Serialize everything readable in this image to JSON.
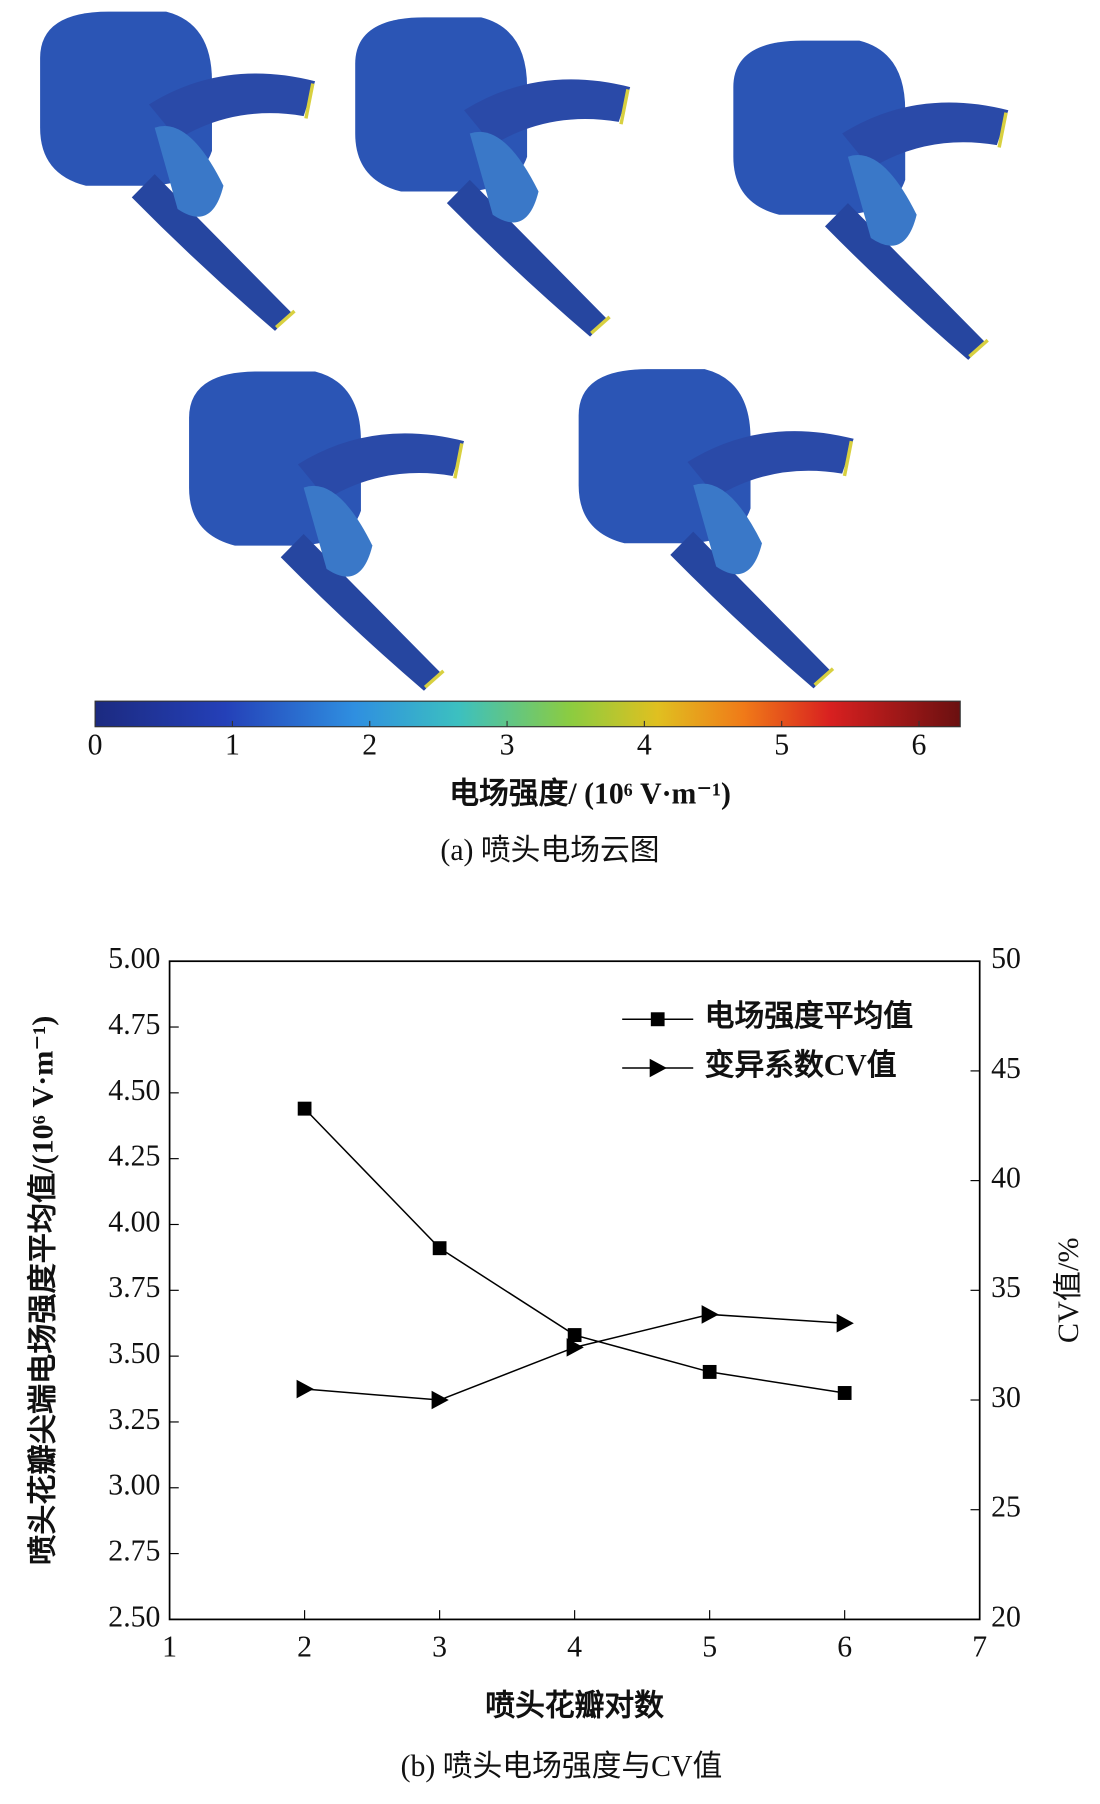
{
  "chart_data": [
    {
      "type": "colorbar",
      "xlim": [
        0,
        6.3
      ],
      "xticks": [
        0,
        1,
        2,
        3,
        4,
        5,
        6
      ],
      "xlabel": "电场强度/ (10⁶ V·m⁻¹)",
      "caption": "(a)  喷头电场云图"
    },
    {
      "type": "line",
      "x": [
        2,
        3,
        4,
        5,
        6
      ],
      "series": [
        {
          "name": "电场强度平均值",
          "color": "#000000",
          "marker": "square",
          "values": [
            4.44,
            3.91,
            3.58,
            3.44,
            3.36
          ]
        },
        {
          "name": "变异系数CV值",
          "color": "#000000",
          "marker": "triangle-right",
          "axis": "y2",
          "values": [
            30.5,
            30.0,
            32.4,
            33.9,
            33.5
          ]
        }
      ],
      "xlim": [
        1,
        7
      ],
      "xticks": [
        1,
        2,
        3,
        4,
        5,
        6,
        7
      ],
      "ylim": [
        2.5,
        5
      ],
      "yticks": [
        {
          "value": 2.5,
          "label": "2.50"
        },
        {
          "value": 2.75,
          "label": "2.75"
        },
        {
          "value": 3,
          "label": "3.00"
        },
        {
          "value": 3.25,
          "label": "3.25"
        },
        {
          "value": 3.5,
          "label": "3.50"
        },
        {
          "value": 3.75,
          "label": "3.75"
        },
        {
          "value": 4,
          "label": "4.00"
        },
        {
          "value": 4.25,
          "label": "4.25"
        },
        {
          "value": 4.5,
          "label": "4.50"
        },
        {
          "value": 4.75,
          "label": "4.75"
        },
        {
          "value": 5,
          "label": "5.00"
        }
      ],
      "y2lim": [
        20,
        50
      ],
      "y2ticks": [
        20,
        25,
        30,
        35,
        40,
        45,
        50
      ],
      "xlabel": "喷头花瓣对数",
      "ylabel": "喷头花瓣尖端电场强度平均值/(10⁶ V·m⁻¹)",
      "y2label": "CV值/%",
      "legend": "top-right",
      "caption": "(b) 喷头电场强度与CV值"
    }
  ]
}
